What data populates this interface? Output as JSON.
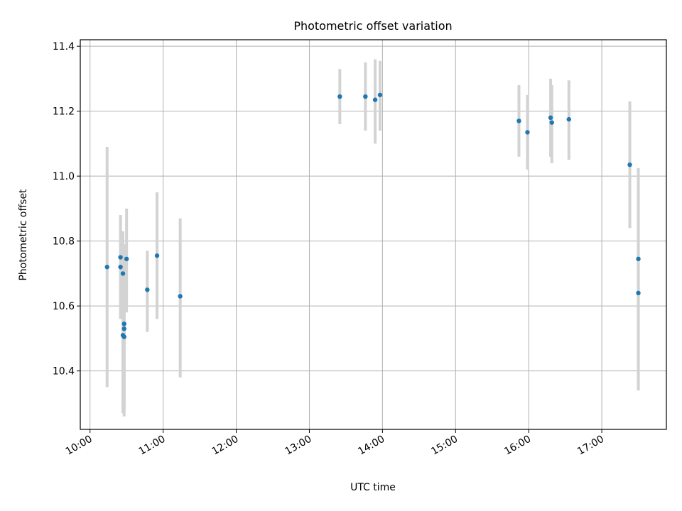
{
  "chart_data": {
    "type": "scatter",
    "title": "Photometric offset variation",
    "xlabel": "UTC time",
    "ylabel": "Photometric offset",
    "x_ticks": [
      "10:00",
      "11:00",
      "12:00",
      "13:00",
      "14:00",
      "15:00",
      "16:00",
      "17:00"
    ],
    "y_ticks": [
      "10.4",
      "10.6",
      "10.8",
      "11.0",
      "11.2",
      "11.4"
    ],
    "xlim": [
      "09:52",
      "17:53"
    ],
    "ylim": [
      10.22,
      11.42
    ],
    "grid": true,
    "marker_color": "#1f77b4",
    "errorbar_color": "#d3d3d3",
    "points": [
      {
        "x": "10:14",
        "y": 10.72,
        "yerr": [
          10.35,
          11.09
        ]
      },
      {
        "x": "10:25",
        "y": 10.72,
        "yerr": [
          10.56,
          10.88
        ]
      },
      {
        "x": "10:25",
        "y": 10.75,
        "yerr": [
          10.56,
          10.88
        ]
      },
      {
        "x": "10:27",
        "y": 10.7,
        "yerr": [
          10.56,
          10.83
        ]
      },
      {
        "x": "10:27",
        "y": 10.51,
        "yerr": [
          10.27,
          10.72
        ]
      },
      {
        "x": "10:28",
        "y": 10.53,
        "yerr": [
          10.28,
          10.78
        ]
      },
      {
        "x": "10:28",
        "y": 10.545,
        "yerr": [
          10.3,
          10.79
        ]
      },
      {
        "x": "10:28",
        "y": 10.505,
        "yerr": [
          10.26,
          10.73
        ]
      },
      {
        "x": "10:30",
        "y": 10.745,
        "yerr": [
          10.58,
          10.9
        ]
      },
      {
        "x": "10:47",
        "y": 10.65,
        "yerr": [
          10.52,
          10.77
        ]
      },
      {
        "x": "10:55",
        "y": 10.755,
        "yerr": [
          10.56,
          10.95
        ]
      },
      {
        "x": "11:14",
        "y": 10.63,
        "yerr": [
          10.38,
          10.87
        ]
      },
      {
        "x": "13:25",
        "y": 11.245,
        "yerr": [
          11.16,
          11.33
        ]
      },
      {
        "x": "13:46",
        "y": 11.245,
        "yerr": [
          11.14,
          11.35
        ]
      },
      {
        "x": "13:54",
        "y": 11.235,
        "yerr": [
          11.1,
          11.36
        ]
      },
      {
        "x": "13:58",
        "y": 11.25,
        "yerr": [
          11.14,
          11.355
        ]
      },
      {
        "x": "15:52",
        "y": 11.17,
        "yerr": [
          11.06,
          11.28
        ]
      },
      {
        "x": "15:59",
        "y": 11.135,
        "yerr": [
          11.02,
          11.25
        ]
      },
      {
        "x": "16:18",
        "y": 11.18,
        "yerr": [
          11.06,
          11.3
        ]
      },
      {
        "x": "16:19",
        "y": 11.165,
        "yerr": [
          11.04,
          11.28
        ]
      },
      {
        "x": "16:33",
        "y": 11.175,
        "yerr": [
          11.05,
          11.295
        ]
      },
      {
        "x": "17:23",
        "y": 11.035,
        "yerr": [
          10.84,
          11.23
        ]
      },
      {
        "x": "17:30",
        "y": 10.745,
        "yerr": [
          10.34,
          10.95
        ]
      },
      {
        "x": "17:30",
        "y": 10.64,
        "yerr": [
          10.34,
          11.025
        ]
      }
    ]
  }
}
